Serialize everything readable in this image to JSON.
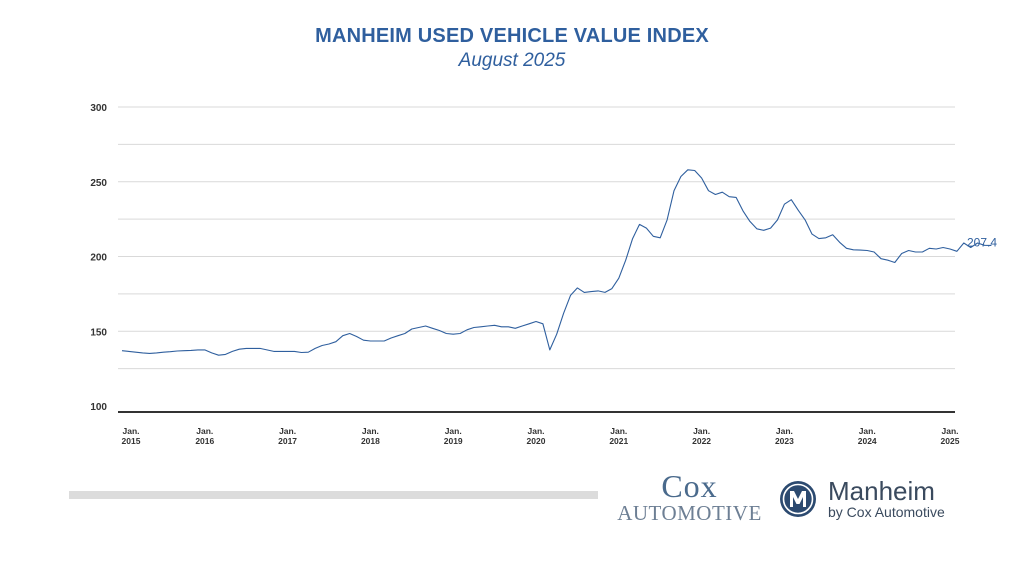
{
  "header": {
    "title": "MANHEIM USED VEHICLE VALUE INDEX",
    "subtitle": "August 2025"
  },
  "chart_data": {
    "type": "line",
    "title": "MANHEIM USED VEHICLE VALUE INDEX",
    "subtitle": "August 2025",
    "xlabel": "",
    "ylabel": "",
    "ylim": [
      95,
      300
    ],
    "yticks": [
      100,
      150,
      200,
      250,
      300
    ],
    "grid": true,
    "xtick_labels": [
      {
        "month": "Jan.",
        "year": "2015"
      },
      {
        "month": "Jan.",
        "year": "2016"
      },
      {
        "month": "Jan.",
        "year": "2017"
      },
      {
        "month": "Jan.",
        "year": "2018"
      },
      {
        "month": "Jan.",
        "year": "2019"
      },
      {
        "month": "Jan.",
        "year": "2020"
      },
      {
        "month": "Jan.",
        "year": "2021"
      },
      {
        "month": "Jan.",
        "year": "2022"
      },
      {
        "month": "Jan.",
        "year": "2023"
      },
      {
        "month": "Jan.",
        "year": "2024"
      },
      {
        "month": "Jan.",
        "year": "2025"
      }
    ],
    "x_start": "2015-01",
    "line_color": "#2f5f9e",
    "end_label": "207.4",
    "series": [
      {
        "values": [
          137,
          136.5,
          136,
          135.5,
          135.2,
          135.5,
          136,
          136.3,
          136.8,
          137,
          137.2,
          137.5,
          137.5,
          135.5,
          134,
          134.5,
          136.5,
          138,
          138.5,
          138.5,
          138.5,
          137.5,
          136.5,
          136.5,
          136.5,
          136.5,
          135.8,
          136,
          138.5,
          140.5,
          141.5,
          143,
          147,
          148.5,
          146.5,
          144,
          143.5,
          143.5,
          143.5,
          145.5,
          147,
          148.5,
          151.5,
          152.5,
          153.5,
          152,
          150.5,
          148.5,
          148,
          148.5,
          151,
          152.5,
          153,
          153.5,
          154,
          153,
          153,
          152,
          153.5,
          155,
          156.5,
          155,
          137.5,
          148,
          162,
          174,
          179,
          176,
          176.5,
          177,
          176,
          178.5,
          185.5,
          197.5,
          212,
          221.5,
          219,
          213.5,
          212.5,
          224.5,
          244,
          253.5,
          258,
          257.5,
          252.5,
          244,
          241.5,
          243,
          240,
          239.5,
          230.5,
          223.5,
          218.5,
          217.5,
          219,
          224.5,
          235,
          238,
          231,
          224.5,
          215,
          212,
          212.5,
          214.5,
          209.5,
          205.5,
          204.5,
          204.3,
          204,
          203,
          198.5,
          197.5,
          196,
          202,
          204,
          203,
          203,
          205.5,
          205,
          206,
          205,
          203.5,
          209,
          206,
          209,
          207.5,
          207.4
        ]
      }
    ]
  },
  "logos": {
    "cox_line1": "Cox",
    "cox_line2": "AUTOMOTIVE",
    "manheim_name": "Manheim",
    "manheim_by": "by Cox Automotive"
  }
}
